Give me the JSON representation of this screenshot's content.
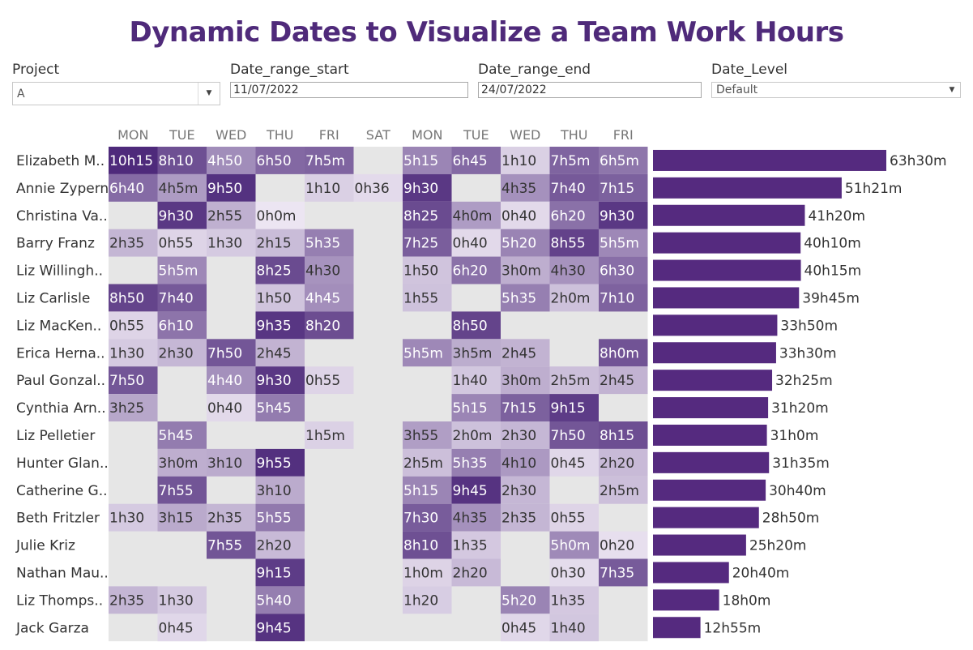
{
  "title": "Dynamic Dates to Visualize a Team Work Hours",
  "filters": {
    "project": {
      "label": "Project",
      "value": "A"
    },
    "date_range_start": {
      "label": "Date_range_start",
      "value": "11/07/2022"
    },
    "date_range_end": {
      "label": "Date_range_end",
      "value": "24/07/2022"
    },
    "date_level": {
      "label": "Date_Level",
      "value": "Default"
    }
  },
  "colors": {
    "empty_cell": "#e6e6e6",
    "bar": "#552a7f",
    "heat_low": "#ece5f2",
    "heat_high": "#4e2a7b",
    "title": "#4f2a7a"
  },
  "chart_data": [
    {
      "type": "heatmap",
      "columns": [
        "MON",
        "TUE",
        "WED",
        "THU",
        "FRI",
        "SAT",
        "MON",
        "TUE",
        "WED",
        "THU",
        "FRI"
      ],
      "rows": [
        "Elizabeth M..",
        "Annie Zypern",
        "Christina Va..",
        "Barry Franz",
        "Liz Willingh..",
        "Liz Carlisle",
        "Liz MacKen..",
        "Erica Herna..",
        "Paul Gonzal..",
        "Cynthia Arn..",
        "Liz Pelletier",
        "Hunter Glan..",
        "Catherine G..",
        "Beth Fritzler",
        "Julie Kriz",
        "Nathan Mau..",
        "Liz Thomps..",
        "Jack Garza"
      ],
      "values": [
        [
          "10h15",
          "8h10",
          "4h50",
          "6h50",
          "7h5m",
          "",
          "5h15",
          "6h45",
          "1h10",
          "7h5m",
          "6h5m"
        ],
        [
          "6h40",
          "4h5m",
          "9h50",
          "",
          "1h10",
          "0h36",
          "9h30",
          "",
          "4h35",
          "7h40",
          "7h15"
        ],
        [
          "",
          "9h30",
          "2h55",
          "0h0m",
          "",
          "",
          "8h25",
          "4h0m",
          "0h40",
          "6h20",
          "9h30"
        ],
        [
          "2h35",
          "0h55",
          "1h30",
          "2h15",
          "5h35",
          "",
          "7h25",
          "0h40",
          "5h20",
          "8h55",
          "5h5m"
        ],
        [
          "",
          "5h5m",
          "",
          "8h25",
          "4h30",
          "",
          "1h50",
          "6h20",
          "3h0m",
          "4h30",
          "6h30"
        ],
        [
          "8h50",
          "7h40",
          "",
          "1h50",
          "4h45",
          "",
          "1h55",
          "",
          "5h35",
          "2h0m",
          "7h10"
        ],
        [
          "0h55",
          "6h10",
          "",
          "9h35",
          "8h20",
          "",
          "",
          "8h50",
          "",
          "",
          ""
        ],
        [
          "1h30",
          "2h30",
          "7h50",
          "2h45",
          "",
          "",
          "5h5m",
          "3h5m",
          "2h45",
          "",
          "8h0m"
        ],
        [
          "7h50",
          "",
          "4h40",
          "9h30",
          "0h55",
          "",
          "",
          "1h40",
          "3h0m",
          "2h5m",
          "2h45"
        ],
        [
          "3h25",
          "",
          "0h40",
          "5h45",
          "",
          "",
          "",
          "5h15",
          "7h15",
          "9h15",
          ""
        ],
        [
          "",
          "5h45",
          "",
          "",
          "1h5m",
          "",
          "3h55",
          "2h0m",
          "2h30",
          "7h50",
          "8h15"
        ],
        [
          "",
          "3h0m",
          "3h10",
          "9h55",
          "",
          "",
          "2h5m",
          "5h35",
          "4h10",
          "0h45",
          "2h20"
        ],
        [
          "",
          "7h55",
          "",
          "3h10",
          "",
          "",
          "5h15",
          "9h45",
          "2h30",
          "",
          "2h5m"
        ],
        [
          "1h30",
          "3h15",
          "2h35",
          "5h55",
          "",
          "",
          "7h30",
          "4h35",
          "2h35",
          "0h55",
          ""
        ],
        [
          "",
          "",
          "7h55",
          "2h20",
          "",
          "",
          "8h10",
          "1h35",
          "",
          "5h0m",
          "0h20"
        ],
        [
          "",
          "",
          "",
          "9h15",
          "",
          "",
          "1h0m",
          "2h20",
          "",
          "0h30",
          "7h35"
        ],
        [
          "2h35",
          "1h30",
          "",
          "5h40",
          "",
          "",
          "1h20",
          "",
          "5h20",
          "1h35",
          ""
        ],
        [
          "",
          "0h45",
          "",
          "9h45",
          "",
          "",
          "",
          "",
          "0h45",
          "1h40",
          ""
        ]
      ]
    },
    {
      "type": "bar",
      "orientation": "horizontal",
      "categories": [
        "Elizabeth M..",
        "Annie Zypern",
        "Christina Va..",
        "Barry Franz",
        "Liz Willingh..",
        "Liz Carlisle",
        "Liz MacKen..",
        "Erica Herna..",
        "Paul Gonzal..",
        "Cynthia Arn..",
        "Liz Pelletier",
        "Hunter Glan..",
        "Catherine G..",
        "Beth Fritzler",
        "Julie Kriz",
        "Nathan Mau..",
        "Liz Thomps..",
        "Jack Garza"
      ],
      "labels": [
        "63h30m",
        "51h21m",
        "41h20m",
        "40h10m",
        "40h15m",
        "39h45m",
        "33h50m",
        "33h30m",
        "32h25m",
        "31h20m",
        "31h0m",
        "31h35m",
        "30h40m",
        "28h50m",
        "25h20m",
        "20h40m",
        "18h0m",
        "12h55m"
      ],
      "values": [
        63.5,
        51.35,
        41.33,
        40.17,
        40.25,
        39.75,
        33.83,
        33.5,
        32.42,
        31.33,
        31.0,
        31.58,
        30.67,
        28.83,
        25.33,
        20.67,
        18.0,
        12.92
      ]
    }
  ]
}
